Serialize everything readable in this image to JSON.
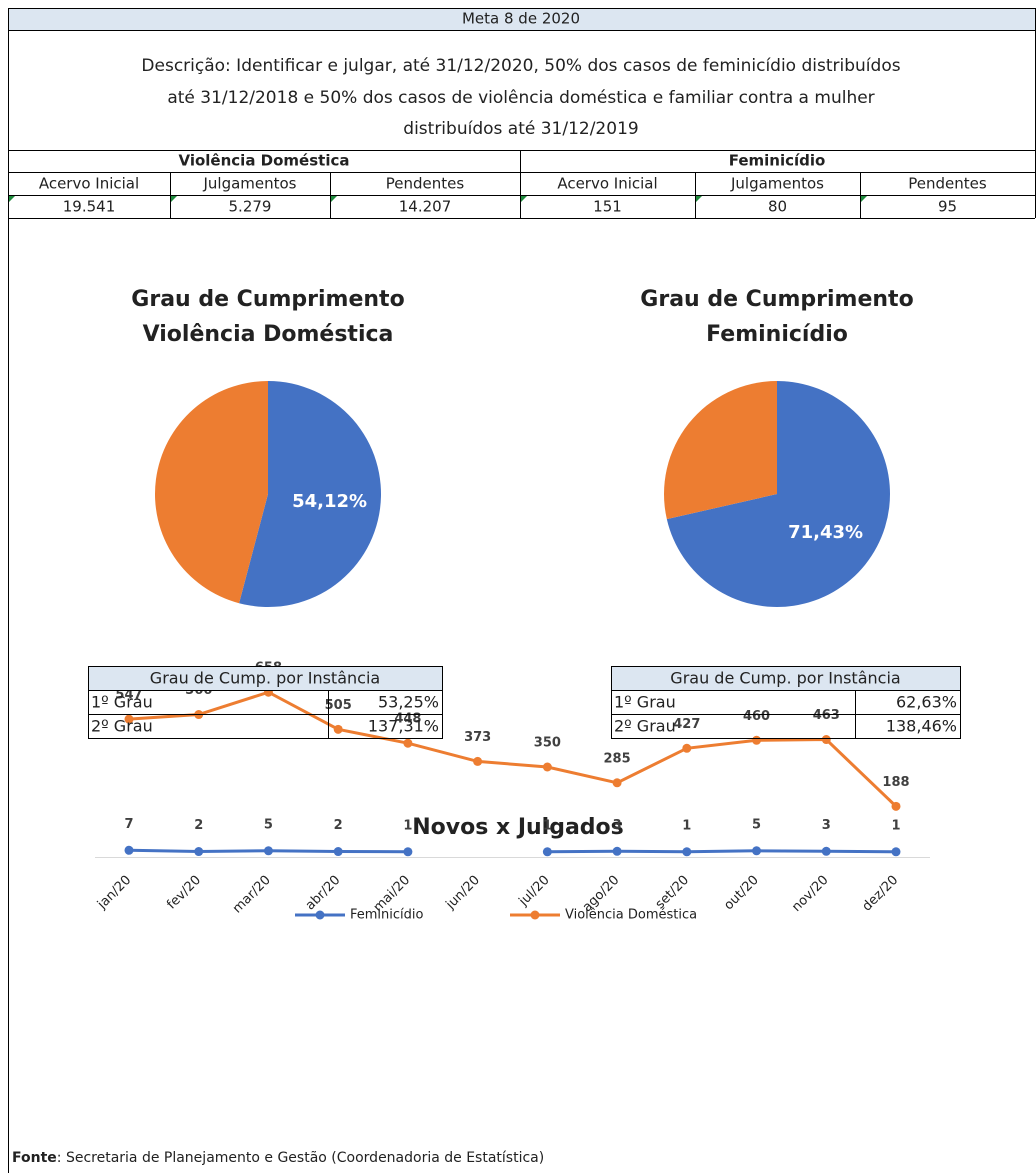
{
  "header": {
    "title": "Meta 8 de 2020",
    "description_lines": [
      "Descrição: Identificar e julgar, até 31/12/2020, 50% dos casos de feminicídio distribuídos",
      "até 31/12/2018 e 50% dos casos de violência doméstica e familiar contra a mulher",
      "distribuídos até 31/12/2019"
    ]
  },
  "table": {
    "groups": [
      "Violência Doméstica",
      "Feminicídio"
    ],
    "columns": [
      "Acervo Inicial",
      "Julgamentos",
      "Pendentes",
      "Acervo Inicial",
      "Julgamentos",
      "Pendentes"
    ],
    "values": [
      "19.541",
      "5.279",
      "14.207",
      "151",
      "80",
      "95"
    ]
  },
  "chart_data": [
    {
      "type": "pie",
      "title_lines": [
        "Grau de Cumprimento",
        "Violência Doméstica"
      ],
      "values": [
        54.12,
        45.88
      ],
      "value_labels": [
        "54,12%",
        null
      ],
      "colors": [
        "#4472c4",
        "#ed7d31"
      ]
    },
    {
      "type": "pie",
      "title_lines": [
        "Grau de Cumprimento",
        "Feminicídio"
      ],
      "values": [
        71.43,
        28.57
      ],
      "value_labels": [
        "71,43%",
        null
      ],
      "colors": [
        "#4472c4",
        "#ed7d31"
      ]
    },
    {
      "type": "line",
      "title": "Novos x Julgados",
      "categories": [
        "jan/20",
        "fev/20",
        "mar/20",
        "abr/20",
        "mai/20",
        "jun/20",
        "jul/20",
        "ago/20",
        "set/20",
        "out/20",
        "nov/20",
        "dez/20"
      ],
      "series": [
        {
          "name": "Feminicídio",
          "color": "#4472c4",
          "values": [
            7,
            2,
            5,
            2,
            1,
            null,
            1,
            3,
            1,
            5,
            3,
            1
          ]
        },
        {
          "name": "Violência Doméstica",
          "color": "#ed7d31",
          "values": [
            547,
            566,
            658,
            505,
            448,
            373,
            350,
            285,
            427,
            460,
            463,
            188
          ]
        }
      ],
      "ylim": [
        0,
        700
      ]
    }
  ],
  "instance_tables": [
    {
      "header": "Grau de Cump. por Instância",
      "rows": [
        [
          "1º Grau",
          "53,25%"
        ],
        [
          "2º Grau",
          "137,31%"
        ]
      ]
    },
    {
      "header": "Grau de Cump. por Instância",
      "rows": [
        [
          "1º Grau",
          "62,63%"
        ],
        [
          "2º Grau",
          "138,46%"
        ]
      ]
    }
  ],
  "source": {
    "label": "Fonte",
    "text": ": Secretaria de Planejamento e Gestão (Coordenadoria de Estatística)"
  }
}
